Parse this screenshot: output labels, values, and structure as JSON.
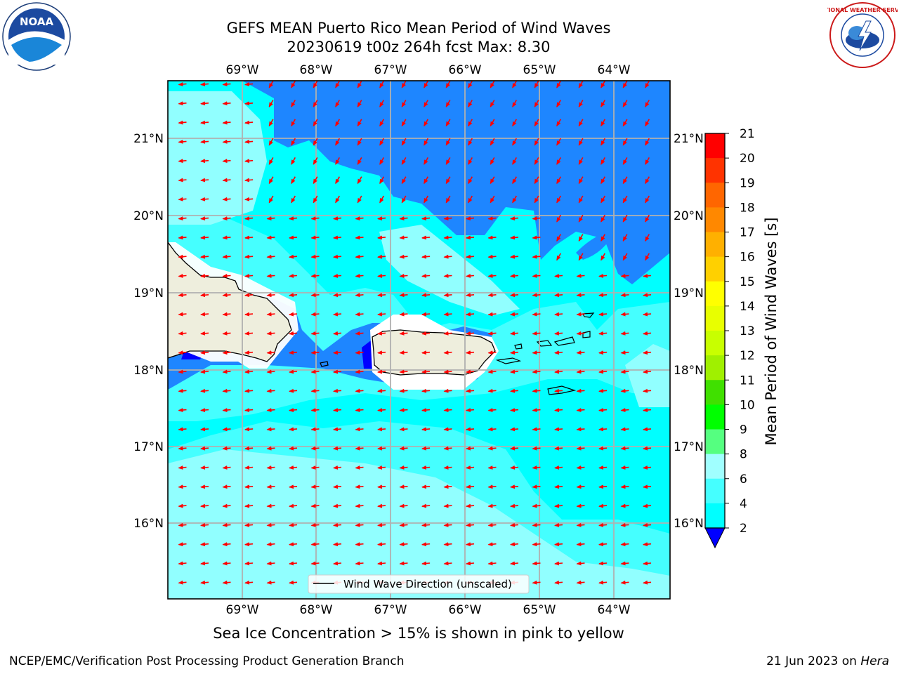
{
  "title": {
    "line1": "GEFS MEAN Puerto Rico Mean Period of Wind Waves",
    "line2": "20230619 t00z 264h fcst   Max: 8.30"
  },
  "logos": {
    "noaa_text": "NOAA",
    "nws_text": "NATIONAL WEATHER SERVICE"
  },
  "map": {
    "lon_labels": [
      "69°W",
      "68°W",
      "67°W",
      "66°W",
      "65°W",
      "64°W"
    ],
    "lat_labels": [
      "21°N",
      "20°N",
      "19°N",
      "18°N",
      "17°N",
      "16°N"
    ],
    "legend_label": "Wind Wave Direction (unscaled)",
    "colors": {
      "land": "#eeeedd",
      "band_2_4": "#1e86ff",
      "band_4_6": "#00ffff",
      "band_6_8": "#45ffff",
      "band_8_9": "#91ffff",
      "arrows": "#ff0000"
    }
  },
  "colorbar": {
    "label": "Mean Period of Wind Waves [s]",
    "ticks": [
      "21",
      "20",
      "19",
      "18",
      "17",
      "16",
      "15",
      "14",
      "13",
      "12",
      "11",
      "10",
      "9",
      "8",
      "6",
      "4",
      "2"
    ],
    "colors": [
      "#ff0000",
      "#ff3300",
      "#ff6600",
      "#ff8800",
      "#ffb000",
      "#ffd000",
      "#ffff00",
      "#e8ff00",
      "#c8ff00",
      "#a0f000",
      "#40e000",
      "#00ff00",
      "#55ff80",
      "#a0ffff",
      "#45ffff",
      "#00ffff",
      "#1e86ff"
    ],
    "underflow_color": "#0000ff"
  },
  "caption": "Sea Ice Concentration > 15% is shown in pink to yellow",
  "footer": {
    "left": "NCEP/EMC/Verification Post Processing Product Generation Branch",
    "date": "21 Jun 2023 on",
    "host": "Hera"
  }
}
